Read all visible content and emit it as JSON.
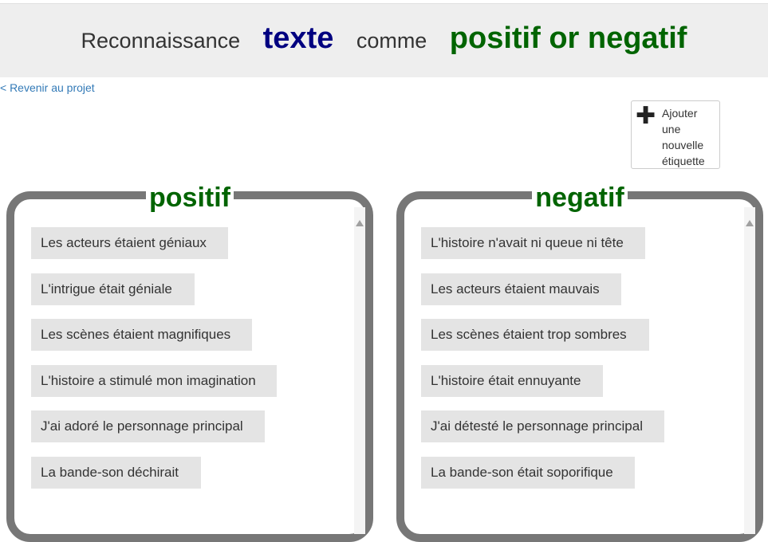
{
  "header": {
    "word1": "Reconnaissance",
    "word2": "texte",
    "word3": "comme",
    "word4": "positif or negatif"
  },
  "nav": {
    "back_label": "< Revenir au projet"
  },
  "toolbar": {
    "add_label": "Ajouter une nouvelle étiquette",
    "add_icon": "plus-icon"
  },
  "categories": [
    {
      "name": "positif",
      "items": [
        "Les acteurs étaient géniaux",
        "L'intrigue était géniale",
        "Les scènes étaient magnifiques",
        "L'histoire a stimulé mon imagination",
        "J'ai adoré le personnage principal",
        "La bande-son déchirait"
      ]
    },
    {
      "name": "negatif",
      "items": [
        "L'histoire n'avait ni queue ni tête",
        "Les acteurs étaient mauvais",
        "Les scènes étaient trop sombres",
        "L'histoire était ennuyante",
        "J'ai détesté le personnage principal",
        "La bande-son était soporifique"
      ]
    }
  ],
  "colors": {
    "title_blue": "#000080",
    "title_green": "#006400",
    "link": "#337ab7",
    "box_border": "#777777",
    "item_bg": "#e4e4e4"
  }
}
